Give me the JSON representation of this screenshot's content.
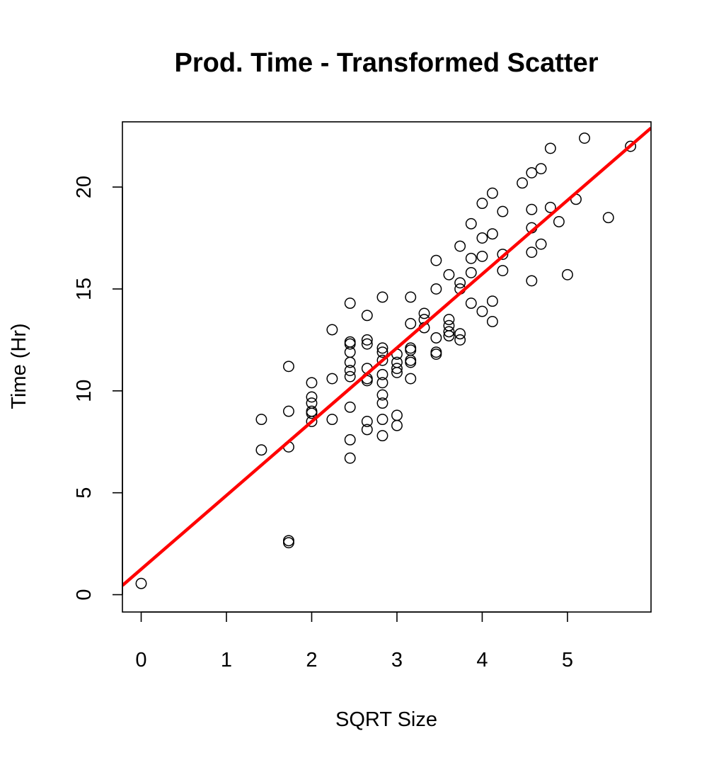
{
  "chart_data": {
    "type": "scatter",
    "title": "Prod. Time - Transformed Scatter",
    "xlabel": "SQRT Size",
    "ylabel": "Time (Hr)",
    "xlim": [
      -0.22,
      5.98
    ],
    "ylim": [
      -0.85,
      23.2
    ],
    "x_ticks": [
      0,
      1,
      2,
      3,
      4,
      5
    ],
    "y_ticks": [
      0,
      5,
      10,
      15,
      20
    ],
    "grid": false,
    "legend": "none",
    "colors": {
      "points": "#000000",
      "fit_line": "#ff0000"
    },
    "fit_line": {
      "intercept": 1.25,
      "slope": 3.62,
      "color": "#ff0000"
    },
    "points": [
      {
        "x": 0.0,
        "y": 0.55
      },
      {
        "x": 1.41,
        "y": 7.1
      },
      {
        "x": 1.41,
        "y": 8.6
      },
      {
        "x": 1.73,
        "y": 2.55
      },
      {
        "x": 1.73,
        "y": 2.65
      },
      {
        "x": 1.73,
        "y": 7.25
      },
      {
        "x": 1.73,
        "y": 9.0
      },
      {
        "x": 1.73,
        "y": 11.2
      },
      {
        "x": 2.0,
        "y": 8.5
      },
      {
        "x": 2.0,
        "y": 8.9
      },
      {
        "x": 2.0,
        "y": 9.0
      },
      {
        "x": 2.0,
        "y": 9.4
      },
      {
        "x": 2.0,
        "y": 9.7
      },
      {
        "x": 2.0,
        "y": 10.4
      },
      {
        "x": 2.24,
        "y": 8.6
      },
      {
        "x": 2.24,
        "y": 10.6
      },
      {
        "x": 2.24,
        "y": 13.0
      },
      {
        "x": 2.45,
        "y": 6.7
      },
      {
        "x": 2.45,
        "y": 7.6
      },
      {
        "x": 2.45,
        "y": 9.2
      },
      {
        "x": 2.45,
        "y": 10.7
      },
      {
        "x": 2.45,
        "y": 11.0
      },
      {
        "x": 2.45,
        "y": 11.4
      },
      {
        "x": 2.45,
        "y": 11.9
      },
      {
        "x": 2.45,
        "y": 12.3
      },
      {
        "x": 2.45,
        "y": 12.4
      },
      {
        "x": 2.45,
        "y": 14.3
      },
      {
        "x": 2.65,
        "y": 8.1
      },
      {
        "x": 2.65,
        "y": 8.5
      },
      {
        "x": 2.65,
        "y": 10.5
      },
      {
        "x": 2.65,
        "y": 10.6
      },
      {
        "x": 2.65,
        "y": 11.1
      },
      {
        "x": 2.65,
        "y": 12.3
      },
      {
        "x": 2.65,
        "y": 12.5
      },
      {
        "x": 2.65,
        "y": 13.7
      },
      {
        "x": 2.83,
        "y": 7.8
      },
      {
        "x": 2.83,
        "y": 8.6
      },
      {
        "x": 2.83,
        "y": 9.4
      },
      {
        "x": 2.83,
        "y": 9.8
      },
      {
        "x": 2.83,
        "y": 10.4
      },
      {
        "x": 2.83,
        "y": 10.8
      },
      {
        "x": 2.83,
        "y": 11.5
      },
      {
        "x": 2.83,
        "y": 11.9
      },
      {
        "x": 2.83,
        "y": 12.1
      },
      {
        "x": 2.83,
        "y": 14.6
      },
      {
        "x": 3.0,
        "y": 8.3
      },
      {
        "x": 3.0,
        "y": 8.8
      },
      {
        "x": 3.0,
        "y": 10.9
      },
      {
        "x": 3.0,
        "y": 11.1
      },
      {
        "x": 3.0,
        "y": 11.4
      },
      {
        "x": 3.0,
        "y": 11.8
      },
      {
        "x": 3.16,
        "y": 10.6
      },
      {
        "x": 3.16,
        "y": 11.4
      },
      {
        "x": 3.16,
        "y": 11.5
      },
      {
        "x": 3.16,
        "y": 12.0
      },
      {
        "x": 3.16,
        "y": 12.1
      },
      {
        "x": 3.16,
        "y": 13.3
      },
      {
        "x": 3.16,
        "y": 14.6
      },
      {
        "x": 3.32,
        "y": 13.1
      },
      {
        "x": 3.32,
        "y": 13.5
      },
      {
        "x": 3.32,
        "y": 13.8
      },
      {
        "x": 3.46,
        "y": 11.8
      },
      {
        "x": 3.46,
        "y": 11.9
      },
      {
        "x": 3.46,
        "y": 12.6
      },
      {
        "x": 3.46,
        "y": 15.0
      },
      {
        "x": 3.46,
        "y": 16.4
      },
      {
        "x": 3.61,
        "y": 12.7
      },
      {
        "x": 3.61,
        "y": 12.9
      },
      {
        "x": 3.61,
        "y": 13.2
      },
      {
        "x": 3.61,
        "y": 13.5
      },
      {
        "x": 3.61,
        "y": 15.7
      },
      {
        "x": 3.74,
        "y": 12.5
      },
      {
        "x": 3.74,
        "y": 12.8
      },
      {
        "x": 3.74,
        "y": 15.0
      },
      {
        "x": 3.74,
        "y": 15.3
      },
      {
        "x": 3.74,
        "y": 17.1
      },
      {
        "x": 3.87,
        "y": 14.3
      },
      {
        "x": 3.87,
        "y": 15.8
      },
      {
        "x": 3.87,
        "y": 16.5
      },
      {
        "x": 3.87,
        "y": 18.2
      },
      {
        "x": 4.0,
        "y": 13.9
      },
      {
        "x": 4.0,
        "y": 16.6
      },
      {
        "x": 4.0,
        "y": 17.5
      },
      {
        "x": 4.0,
        "y": 19.2
      },
      {
        "x": 4.12,
        "y": 13.4
      },
      {
        "x": 4.12,
        "y": 14.4
      },
      {
        "x": 4.12,
        "y": 17.7
      },
      {
        "x": 4.12,
        "y": 19.7
      },
      {
        "x": 4.24,
        "y": 15.9
      },
      {
        "x": 4.24,
        "y": 16.7
      },
      {
        "x": 4.24,
        "y": 18.8
      },
      {
        "x": 4.47,
        "y": 20.2
      },
      {
        "x": 4.58,
        "y": 15.4
      },
      {
        "x": 4.58,
        "y": 16.8
      },
      {
        "x": 4.58,
        "y": 18.0
      },
      {
        "x": 4.58,
        "y": 18.9
      },
      {
        "x": 4.58,
        "y": 20.7
      },
      {
        "x": 4.69,
        "y": 17.2
      },
      {
        "x": 4.69,
        "y": 20.9
      },
      {
        "x": 4.8,
        "y": 19.0
      },
      {
        "x": 4.8,
        "y": 21.9
      },
      {
        "x": 4.9,
        "y": 18.3
      },
      {
        "x": 5.0,
        "y": 15.7
      },
      {
        "x": 5.1,
        "y": 19.4
      },
      {
        "x": 5.2,
        "y": 22.4
      },
      {
        "x": 5.48,
        "y": 18.5
      },
      {
        "x": 5.74,
        "y": 22.0
      }
    ]
  }
}
